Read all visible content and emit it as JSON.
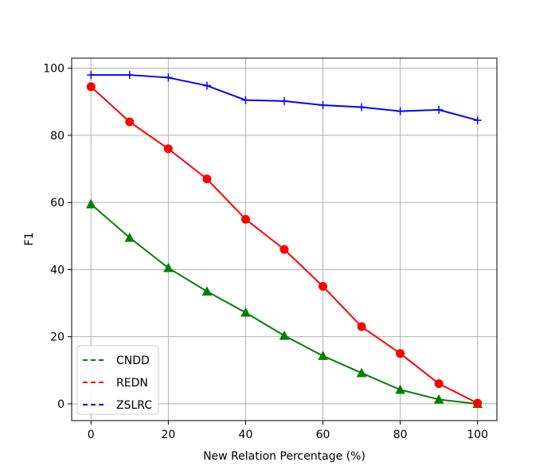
{
  "chart_data": {
    "type": "line",
    "title": "",
    "xlabel": "New Relation Percentage (%)",
    "ylabel": "F1",
    "xlim": [
      -5,
      105
    ],
    "ylim": [
      -5,
      103
    ],
    "xticks": [
      0,
      20,
      40,
      60,
      80,
      100
    ],
    "yticks": [
      0,
      20,
      40,
      60,
      80,
      100
    ],
    "grid": true,
    "legend_position": "lower-left",
    "x": [
      0,
      10,
      20,
      30,
      40,
      50,
      60,
      70,
      80,
      90,
      100
    ],
    "series": [
      {
        "name": "CNDD",
        "color": "#008000",
        "marker": "triangle",
        "values": [
          59.5,
          49.5,
          40.5,
          33.5,
          27.2,
          20.3,
          14.3,
          9.2,
          4.2,
          1.3,
          0.0
        ]
      },
      {
        "name": "REDN",
        "color": "#ff0000",
        "marker": "circle",
        "values": [
          94.5,
          84.0,
          76.0,
          67.0,
          55.0,
          46.0,
          35.0,
          23.0,
          15.0,
          6.0,
          0.2
        ]
      },
      {
        "name": "ZSLRC",
        "color": "#0000ff",
        "marker": "plus",
        "values": [
          98.0,
          98.0,
          97.2,
          94.8,
          90.5,
          90.2,
          89.0,
          88.4,
          87.2,
          87.6,
          84.5
        ]
      }
    ]
  }
}
